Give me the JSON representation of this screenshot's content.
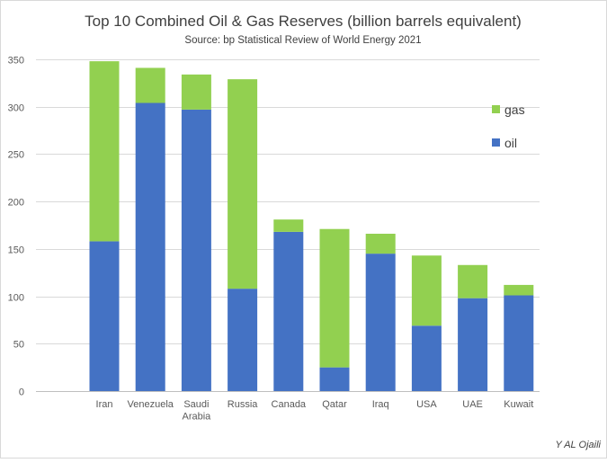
{
  "chart_data": {
    "type": "bar",
    "stacked": true,
    "title": "Top 10 Combined Oil & Gas Reserves (billion barrels equivalent)",
    "subtitle": "Source: bp Statistical Review of World Energy 2021",
    "xlabel": "",
    "ylabel": "",
    "ylim": [
      0,
      350
    ],
    "yticks": [
      0,
      50,
      100,
      150,
      200,
      250,
      300,
      350
    ],
    "grid": true,
    "categories": [
      "Iran",
      "Venezuela",
      "Saudi Arabia",
      "Russia",
      "Canada",
      "Qatar",
      "Iraq",
      "USA",
      "UAE",
      "Kuwait"
    ],
    "category_lines": [
      [
        "Iran"
      ],
      [
        "Venezuela"
      ],
      [
        "Saudi",
        "Arabia"
      ],
      [
        "Russia"
      ],
      [
        "Canada"
      ],
      [
        "Qatar"
      ],
      [
        "Iraq"
      ],
      [
        "USA"
      ],
      [
        "UAE"
      ],
      [
        "Kuwait"
      ]
    ],
    "series": [
      {
        "name": "oil",
        "color": "#4472C4",
        "values": [
          158,
          304,
          297,
          108,
          168,
          25,
          145,
          69,
          98,
          101
        ]
      },
      {
        "name": "gas",
        "color": "#92D050",
        "values": [
          190,
          37,
          37,
          221,
          13,
          146,
          21,
          74,
          35,
          11
        ]
      }
    ],
    "legend": {
      "placement": "right",
      "order": [
        "gas",
        "oil"
      ]
    },
    "credit": "Y AL Ojaili"
  }
}
